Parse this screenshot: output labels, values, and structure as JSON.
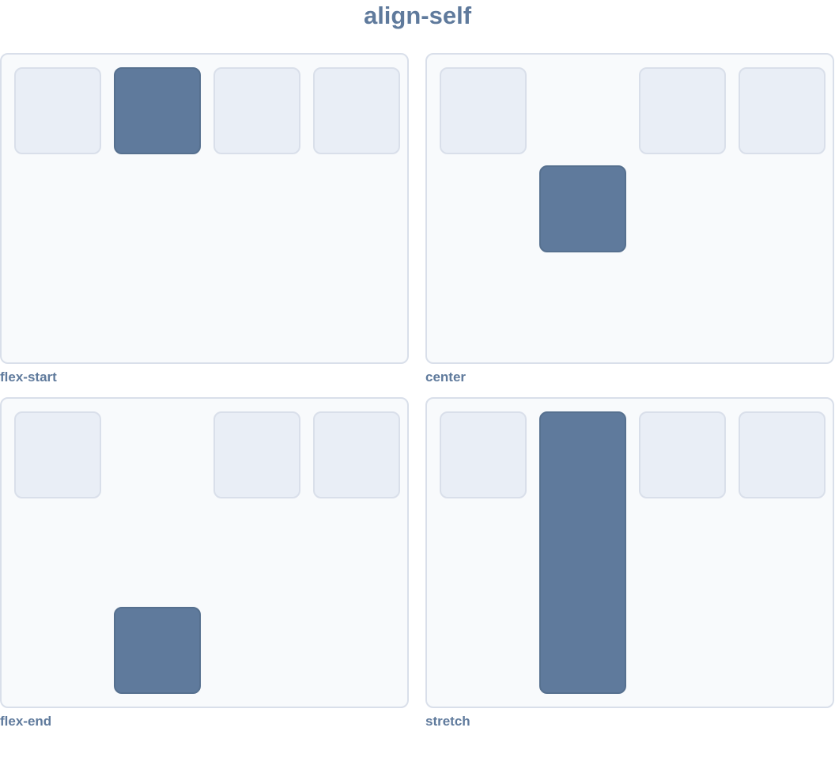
{
  "title": "align-self",
  "colors": {
    "highlight": "#5f7a9c",
    "item": "#e9eef6",
    "panel": "#f8fafc",
    "border": "#d9dfea"
  },
  "panels": [
    {
      "label": "flex-start",
      "align_self": "flex-start",
      "highlighted_index": 1
    },
    {
      "label": "center",
      "align_self": "center",
      "highlighted_index": 1
    },
    {
      "label": "flex-end",
      "align_self": "flex-end",
      "highlighted_index": 1
    },
    {
      "label": "stretch",
      "align_self": "stretch",
      "highlighted_index": 1
    }
  ]
}
